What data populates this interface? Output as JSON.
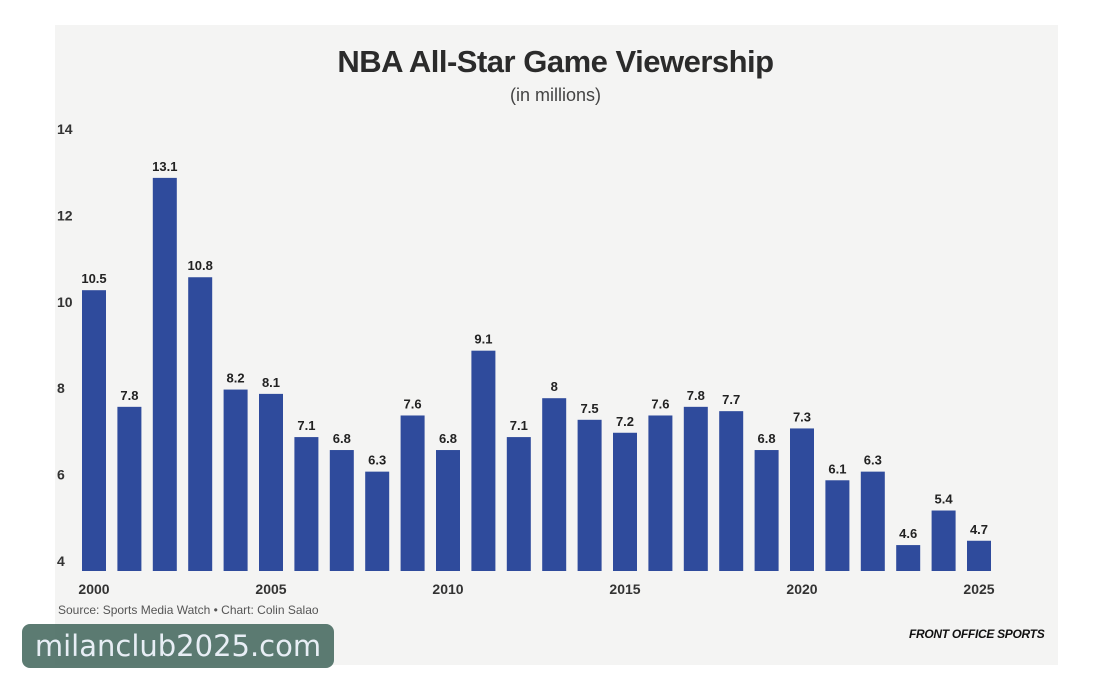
{
  "chart_data": {
    "type": "bar",
    "title": "NBA All-Star Game Viewership",
    "subtitle": "(in millions)",
    "xlabel": "",
    "ylabel": "",
    "ylim": [
      4,
      14
    ],
    "yticks": [
      4,
      6,
      8,
      10,
      12,
      14
    ],
    "xticks": [
      2000,
      2005,
      2010,
      2015,
      2020,
      2025
    ],
    "grid": false,
    "bar_color": "#2f4b9c",
    "categories": [
      2000,
      2001,
      2002,
      2003,
      2004,
      2005,
      2006,
      2007,
      2008,
      2009,
      2010,
      2011,
      2012,
      2013,
      2014,
      2015,
      2016,
      2017,
      2018,
      2019,
      2020,
      2021,
      2022,
      2023,
      2024,
      2025
    ],
    "values": [
      10.5,
      7.8,
      13.1,
      10.8,
      8.2,
      8.1,
      7.1,
      6.8,
      6.3,
      7.6,
      6.8,
      9.1,
      7.1,
      8,
      7.5,
      7.2,
      7.6,
      7.8,
      7.7,
      6.8,
      7.3,
      6.1,
      6.3,
      4.6,
      5.4,
      4.7
    ]
  },
  "footer": {
    "source": "Source: Sports Media Watch • Chart: Colin Salao",
    "brand": "FRONT OFFICE SPORTS"
  },
  "watermark": "milanclub2025.com"
}
